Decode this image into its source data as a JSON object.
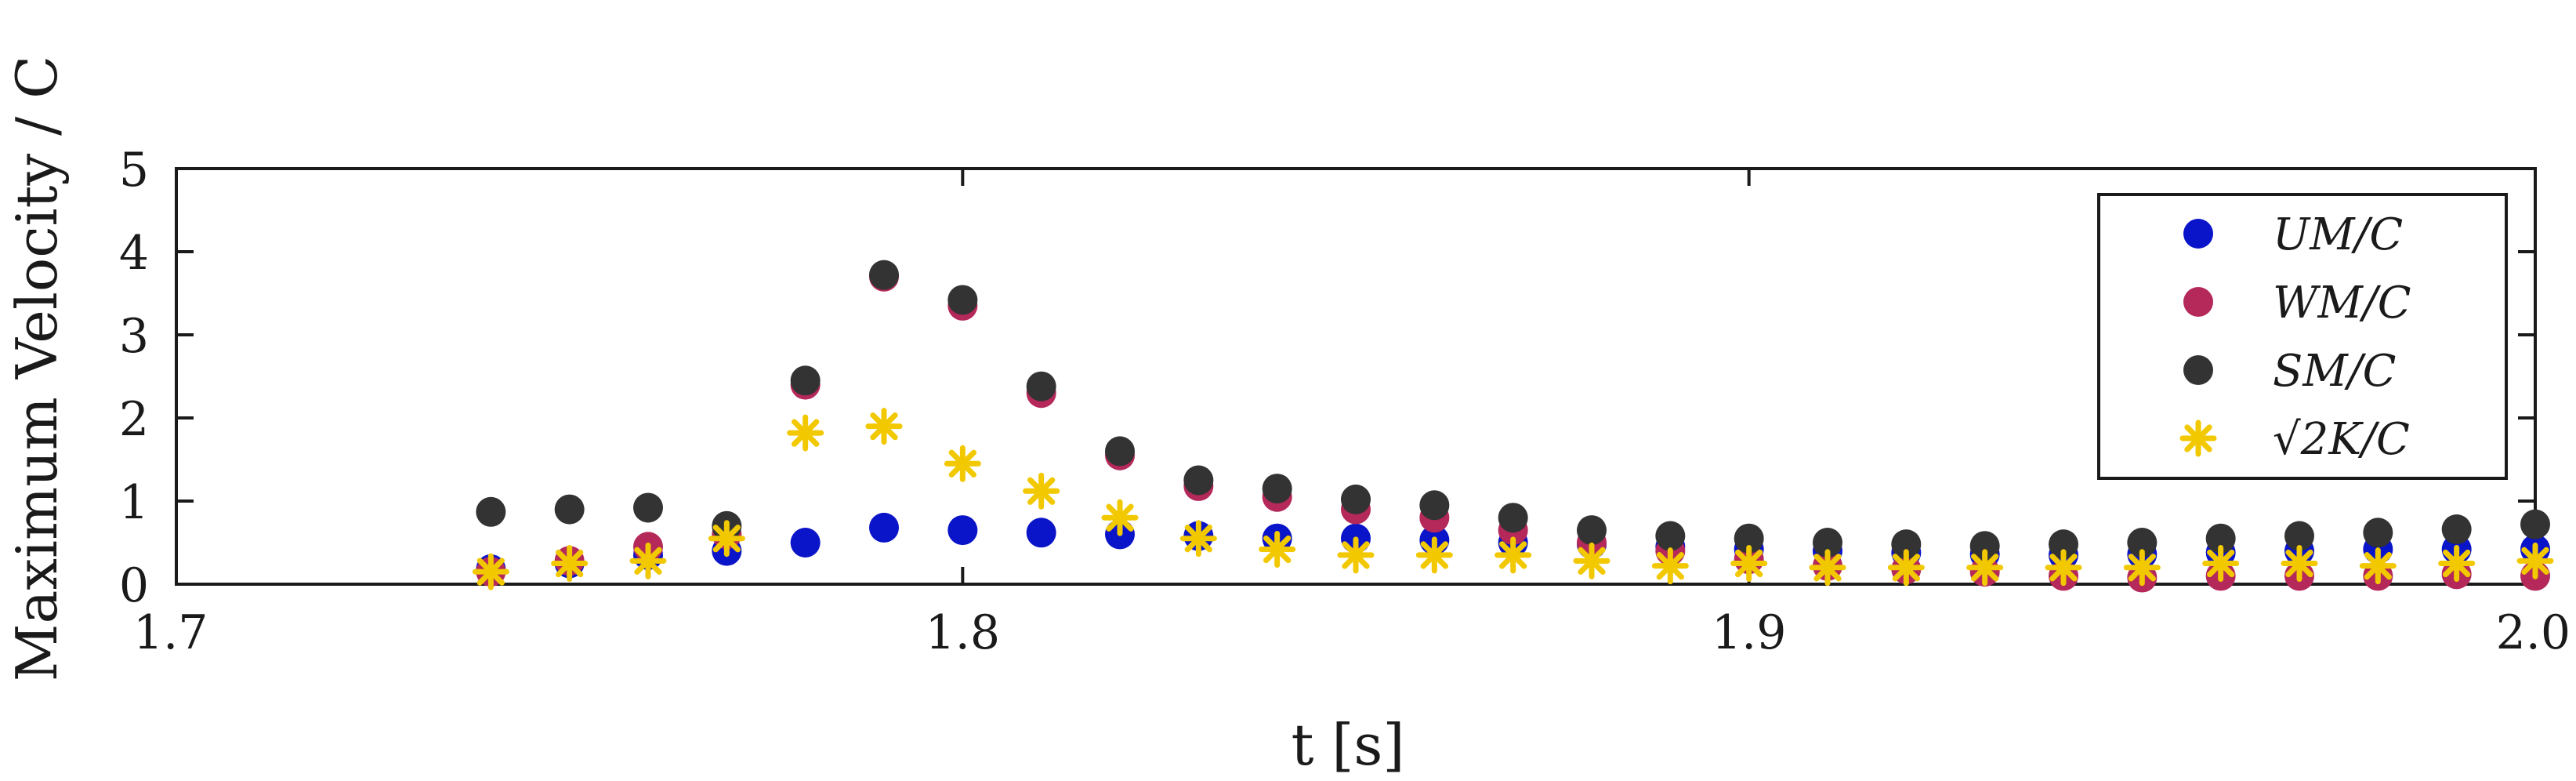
{
  "chart_data": {
    "type": "scatter",
    "xlabel": "t [s]",
    "ylabel": "Maximum Velocity / C",
    "xlim": [
      1.7,
      2.0
    ],
    "ylim": [
      0,
      5
    ],
    "xticks": [
      "1.7",
      "1.8",
      "1.9",
      "2.0"
    ],
    "yticks": [
      "0",
      "1",
      "2",
      "3",
      "4",
      "5"
    ],
    "grid": false,
    "legend_position": "top-right",
    "series": [
      {
        "name": "U_M/C",
        "label": "UM/C",
        "marker": "circle",
        "color": "#0a14c8",
        "x": [
          1.74,
          1.75,
          1.76,
          1.77,
          1.78,
          1.79,
          1.8,
          1.81,
          1.82,
          1.83,
          1.84,
          1.85,
          1.86,
          1.87,
          1.88,
          1.89,
          1.9,
          1.91,
          1.92,
          1.93,
          1.94,
          1.95,
          1.96,
          1.97,
          1.98,
          1.99,
          2.0
        ],
        "y": [
          0.18,
          0.25,
          0.35,
          0.4,
          0.5,
          0.68,
          0.65,
          0.62,
          0.6,
          0.58,
          0.55,
          0.55,
          0.53,
          0.5,
          0.48,
          0.45,
          0.42,
          0.4,
          0.38,
          0.36,
          0.35,
          0.36,
          0.38,
          0.4,
          0.42,
          0.42,
          0.42
        ]
      },
      {
        "name": "W_M/C",
        "label": "WM/C",
        "marker": "circle",
        "color": "#b4285a",
        "x": [
          1.74,
          1.75,
          1.76,
          1.77,
          1.78,
          1.79,
          1.8,
          1.81,
          1.82,
          1.83,
          1.84,
          1.85,
          1.86,
          1.87,
          1.88,
          1.89,
          1.9,
          1.91,
          1.92,
          1.93,
          1.94,
          1.95,
          1.96,
          1.97,
          1.98,
          1.99,
          2.0
        ],
        "y": [
          0.15,
          0.28,
          0.45,
          0.6,
          2.4,
          3.7,
          3.35,
          2.3,
          1.55,
          1.18,
          1.05,
          0.9,
          0.8,
          0.65,
          0.5,
          0.4,
          0.3,
          0.22,
          0.18,
          0.15,
          0.1,
          0.08,
          0.1,
          0.1,
          0.1,
          0.12,
          0.1
        ]
      },
      {
        "name": "S_M/C",
        "label": "SM/C",
        "marker": "circle",
        "color": "#333333",
        "x": [
          1.74,
          1.75,
          1.76,
          1.77,
          1.78,
          1.79,
          1.8,
          1.81,
          1.82,
          1.83,
          1.84,
          1.85,
          1.86,
          1.87,
          1.88,
          1.89,
          1.9,
          1.91,
          1.92,
          1.93,
          1.94,
          1.95,
          1.96,
          1.97,
          1.98,
          1.99,
          2.0
        ],
        "y": [
          0.87,
          0.9,
          0.92,
          0.7,
          2.45,
          3.72,
          3.42,
          2.38,
          1.6,
          1.25,
          1.15,
          1.02,
          0.95,
          0.8,
          0.65,
          0.58,
          0.55,
          0.5,
          0.48,
          0.46,
          0.48,
          0.5,
          0.55,
          0.58,
          0.62,
          0.66,
          0.72
        ]
      },
      {
        "name": "sqrt(2K)/C",
        "label": "√2K/C",
        "marker": "asterisk",
        "color": "#f2c800",
        "x": [
          1.74,
          1.75,
          1.76,
          1.77,
          1.78,
          1.79,
          1.8,
          1.81,
          1.82,
          1.83,
          1.84,
          1.85,
          1.86,
          1.87,
          1.88,
          1.89,
          1.9,
          1.91,
          1.92,
          1.93,
          1.94,
          1.95,
          1.96,
          1.97,
          1.98,
          1.99,
          2.0
        ],
        "y": [
          0.15,
          0.25,
          0.28,
          0.55,
          1.82,
          1.9,
          1.45,
          1.12,
          0.8,
          0.55,
          0.42,
          0.35,
          0.35,
          0.35,
          0.28,
          0.22,
          0.25,
          0.2,
          0.2,
          0.2,
          0.2,
          0.2,
          0.25,
          0.25,
          0.22,
          0.25,
          0.28
        ]
      }
    ]
  }
}
